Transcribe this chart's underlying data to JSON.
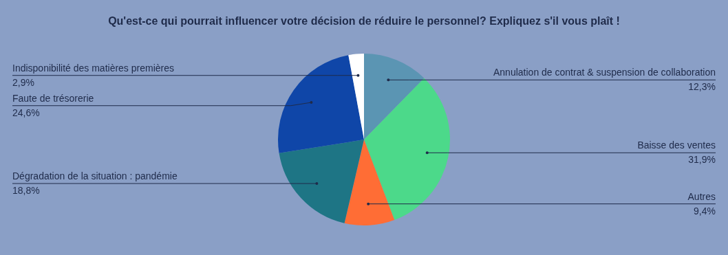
{
  "chart_data": {
    "type": "pie",
    "title": "Qu'est-ce qui pourrait influencer votre décision de réduire le personnel? Expliquez s'il vous plaît !",
    "categories": [
      "Annulation de contrat & suspension de collaboration",
      "Baisse des ventes",
      "Autres",
      "Dégradation de la situation : pandémie",
      "Faute de trésorerie",
      "Indisponibilité des matières premières"
    ],
    "values": [
      12.3,
      31.9,
      9.4,
      18.8,
      24.6,
      2.9
    ],
    "colors": [
      "#5b95b3",
      "#4cd98a",
      "#ff6d35",
      "#1e7585",
      "#0f46a8",
      "#ffffff"
    ],
    "value_labels": [
      "12,3%",
      "31,9%",
      "9,4%",
      "18,8%",
      "24,6%",
      "2,9%"
    ],
    "legend": false
  }
}
